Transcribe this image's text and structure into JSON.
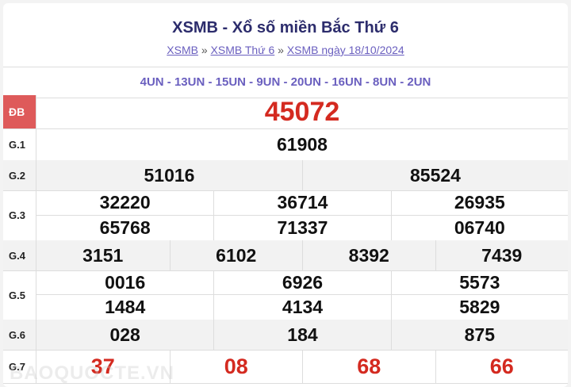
{
  "title": "XSMB - Xổ số miền Bắc Thứ 6",
  "breadcrumb": [
    {
      "label": "XSMB"
    },
    {
      "label": "XSMB Thứ 6"
    },
    {
      "label": "XSMB ngày 18/10/2024"
    }
  ],
  "breadcrumb_sep": "»",
  "codes": "4UN - 13UN - 15UN - 9UN - 20UN - 16UN - 8UN - 2UN",
  "prizes": {
    "db": {
      "label": "ĐB",
      "values": [
        "45072"
      ]
    },
    "g1": {
      "label": "G.1",
      "values": [
        "61908"
      ]
    },
    "g2": {
      "label": "G.2",
      "values": [
        "51016",
        "85524"
      ]
    },
    "g3": {
      "label": "G.3",
      "values": [
        "32220",
        "36714",
        "26935",
        "65768",
        "71337",
        "06740"
      ]
    },
    "g4": {
      "label": "G.4",
      "values": [
        "3151",
        "6102",
        "8392",
        "7439"
      ]
    },
    "g5": {
      "label": "G.5",
      "values": [
        "0016",
        "6926",
        "5573",
        "1484",
        "4134",
        "5829"
      ]
    },
    "g6": {
      "label": "G.6",
      "values": [
        "028",
        "184",
        "875"
      ]
    },
    "g7": {
      "label": "G.7",
      "values": [
        "37",
        "08",
        "68",
        "66"
      ]
    }
  },
  "watermark": "BAOQUOCTE.VN",
  "colors": {
    "special_label_bg": "#de5a5a",
    "red": "#d42a20",
    "link": "#6a5fbf",
    "title": "#2c2c6c"
  }
}
